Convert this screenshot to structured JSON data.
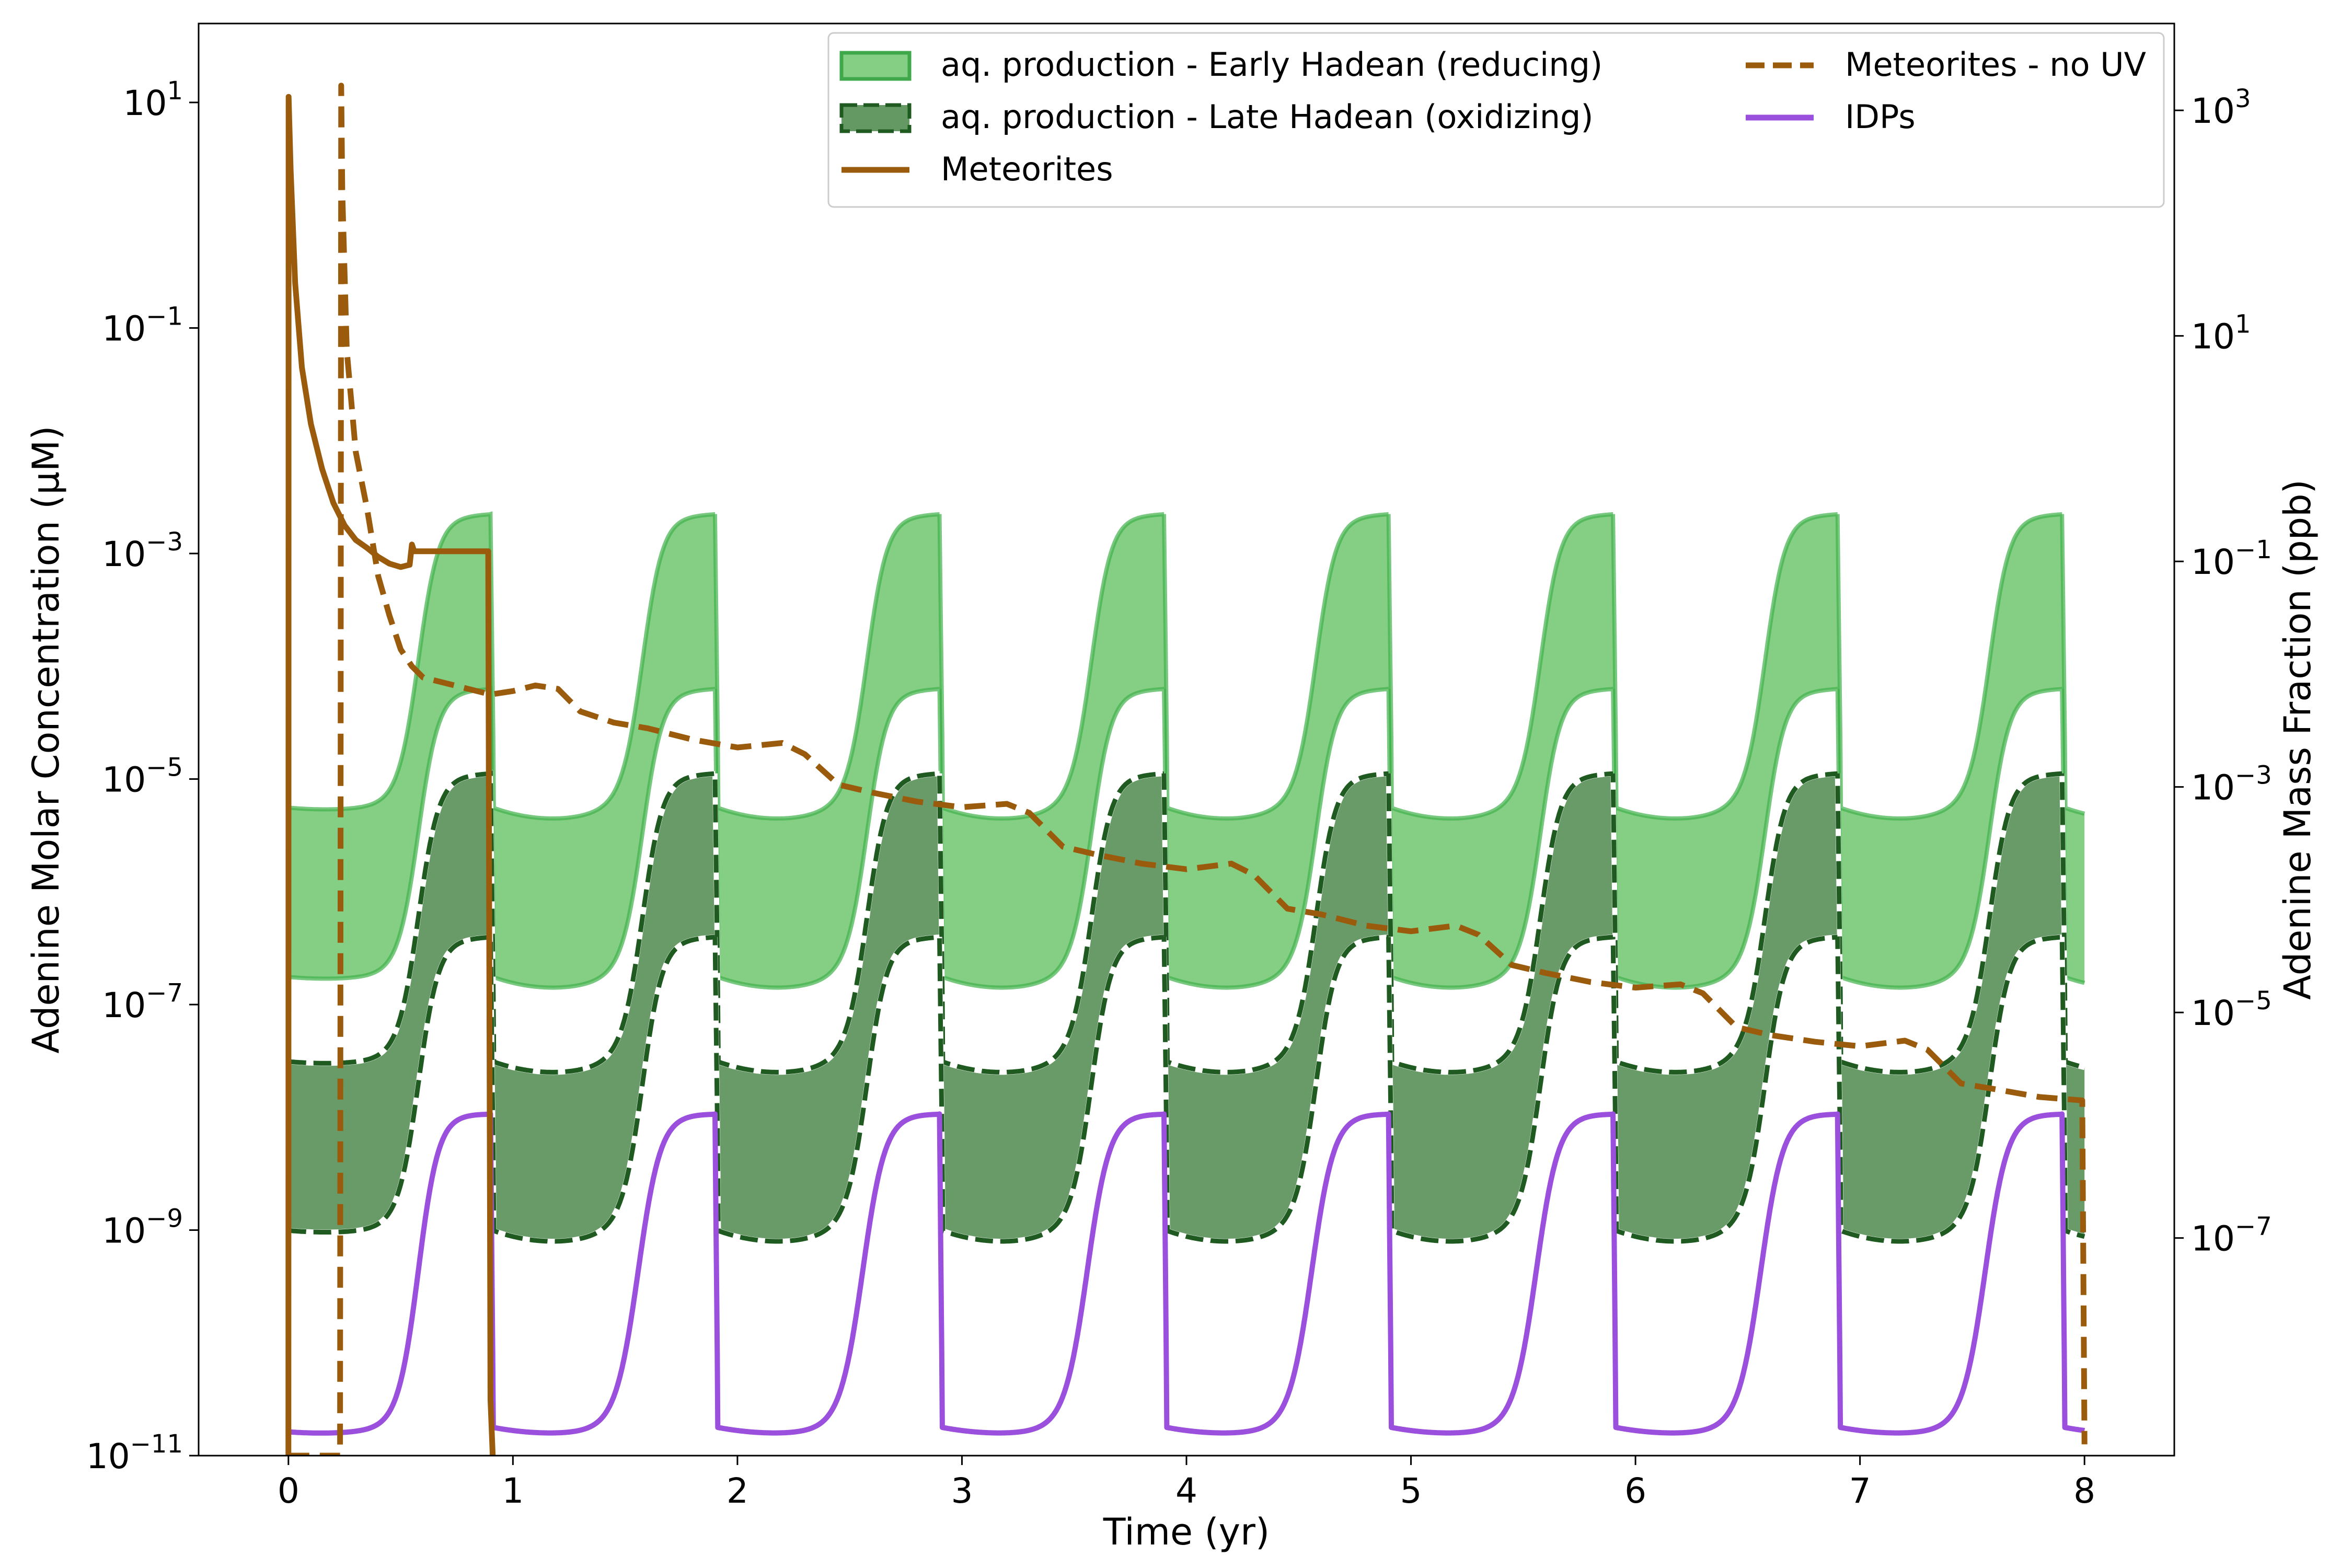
{
  "chart_data": {
    "type": "line",
    "xlabel": "Time (yr)",
    "ylabel": "Adenine Molar Concentration (μM)",
    "ylabel_right": "Adenine Mass Fraction (ppb)",
    "xlim": [
      -0.4,
      8.4
    ],
    "ylim_log10": [
      -11,
      1.7
    ],
    "y_scale": "log",
    "x_ticks": [
      {
        "value": 0,
        "label": "0"
      },
      {
        "value": 1,
        "label": "1"
      },
      {
        "value": 2,
        "label": "2"
      },
      {
        "value": 3,
        "label": "3"
      },
      {
        "value": 4,
        "label": "4"
      },
      {
        "value": 5,
        "label": "5"
      },
      {
        "value": 6,
        "label": "6"
      },
      {
        "value": 7,
        "label": "7"
      },
      {
        "value": 8,
        "label": "8"
      }
    ],
    "y_ticks_left": [
      {
        "exp": 1,
        "base": "10",
        "label": "1"
      },
      {
        "exp": -1,
        "base": "10",
        "label": "−1"
      },
      {
        "exp": -3,
        "base": "10",
        "label": "−3"
      },
      {
        "exp": -5,
        "base": "10",
        "label": "−5"
      },
      {
        "exp": -7,
        "base": "10",
        "label": "−7"
      },
      {
        "exp": -9,
        "base": "10",
        "label": "−9"
      },
      {
        "exp": -11,
        "base": "10",
        "label": "−11"
      }
    ],
    "y_ticks_right": [
      {
        "exp_left": 0.93,
        "base": "10",
        "label": "3"
      },
      {
        "exp_left": -1.07,
        "base": "10",
        "label": "1"
      },
      {
        "exp_left": -3.07,
        "base": "10",
        "label": "−1"
      },
      {
        "exp_left": -5.07,
        "base": "10",
        "label": "−3"
      },
      {
        "exp_left": -7.07,
        "base": "10",
        "label": "−5"
      },
      {
        "exp_left": -9.07,
        "base": "10",
        "label": "−7"
      }
    ],
    "legend": {
      "placement": "top-right",
      "entries": [
        {
          "label": "aq. production - Early Hadean (reducing)",
          "kind": "fill",
          "color": "#5cbf5c",
          "edge": "#3fa84a"
        },
        {
          "label": "aq. production - Late Hadean (oxidizing)",
          "kind": "fill-dashed",
          "color": "#3d7f3d",
          "edge": "#1f5a20"
        },
        {
          "label": "Meteorites",
          "kind": "line",
          "color": "#9a5b0c"
        },
        {
          "label": "Meteorites - no UV",
          "kind": "dashed",
          "color": "#9a5b0c"
        },
        {
          "label": "IDPs",
          "kind": "line",
          "color": "#9b4fdd"
        }
      ]
    },
    "cycle": {
      "start": 0.9,
      "period": 1.0,
      "end": 8.0,
      "wet_phase_end_offset": 0.7
    },
    "series": [
      {
        "name": "aq. production - Early Hadean (reducing)",
        "kind": "band",
        "color": "#5cbf5c",
        "upper_log10_min": -5.35,
        "upper_log10_max": -2.65,
        "lower_log10_min": -6.85,
        "lower_log10_max": -4.2
      },
      {
        "name": "aq. production - Late Hadean (oxidizing)",
        "kind": "band",
        "color": "#3d7f3d",
        "upper_log10_min": -7.6,
        "upper_log10_max": -4.95,
        "lower_log10_min": -9.1,
        "lower_log10_max": -6.4
      },
      {
        "name": "IDPs",
        "kind": "line",
        "color": "#9b4fdd",
        "log10_min": -10.8,
        "log10_max": -7.97
      },
      {
        "name": "Meteorites",
        "kind": "line",
        "color": "#9a5b0c",
        "x": [
          0.0,
          0.001,
          0.01,
          0.03,
          0.06,
          0.1,
          0.15,
          0.2,
          0.25,
          0.3,
          0.35,
          0.4,
          0.45,
          0.5,
          0.54,
          0.55,
          0.56,
          0.7,
          0.89,
          0.9,
          0.91
        ],
        "log10": [
          -11,
          1.05,
          0.4,
          -0.6,
          -1.35,
          -1.85,
          -2.25,
          -2.55,
          -2.75,
          -2.88,
          -2.95,
          -3.03,
          -3.09,
          -3.12,
          -3.1,
          -2.92,
          -2.98,
          -2.98,
          -2.98,
          -10.5,
          -11
        ]
      },
      {
        "name": "Meteorites - no UV",
        "kind": "dashed",
        "color": "#9a5b0c",
        "x": [
          0.0,
          0.23,
          0.235,
          0.24,
          0.26,
          0.3,
          0.35,
          0.4,
          0.45,
          0.5,
          0.55,
          0.6,
          0.7,
          0.8,
          0.9,
          1.0,
          1.1,
          1.2,
          1.3,
          1.45,
          1.6,
          1.8,
          2.0,
          2.2,
          2.3,
          2.45,
          2.6,
          2.8,
          3.0,
          3.2,
          3.3,
          3.45,
          3.6,
          3.8,
          4.0,
          4.2,
          4.3,
          4.45,
          4.6,
          4.8,
          5.0,
          5.2,
          5.3,
          5.45,
          5.6,
          5.8,
          6.0,
          6.2,
          6.3,
          6.45,
          6.6,
          6.8,
          7.0,
          7.2,
          7.3,
          7.45,
          7.6,
          7.8,
          7.99,
          8.0
        ],
        "log10": [
          -11,
          -11,
          1.15,
          0.2,
          -1.2,
          -2.1,
          -2.6,
          -3.2,
          -3.55,
          -3.85,
          -4.0,
          -4.1,
          -4.15,
          -4.2,
          -4.25,
          -4.22,
          -4.17,
          -4.2,
          -4.4,
          -4.5,
          -4.55,
          -4.65,
          -4.72,
          -4.68,
          -4.78,
          -5.05,
          -5.12,
          -5.2,
          -5.25,
          -5.22,
          -5.3,
          -5.6,
          -5.67,
          -5.75,
          -5.8,
          -5.75,
          -5.85,
          -6.15,
          -6.2,
          -6.3,
          -6.35,
          -6.3,
          -6.38,
          -6.65,
          -6.72,
          -6.8,
          -6.85,
          -6.82,
          -6.9,
          -7.2,
          -7.27,
          -7.33,
          -7.37,
          -7.32,
          -7.4,
          -7.7,
          -7.75,
          -7.82,
          -7.85,
          -10.9
        ]
      }
    ]
  }
}
